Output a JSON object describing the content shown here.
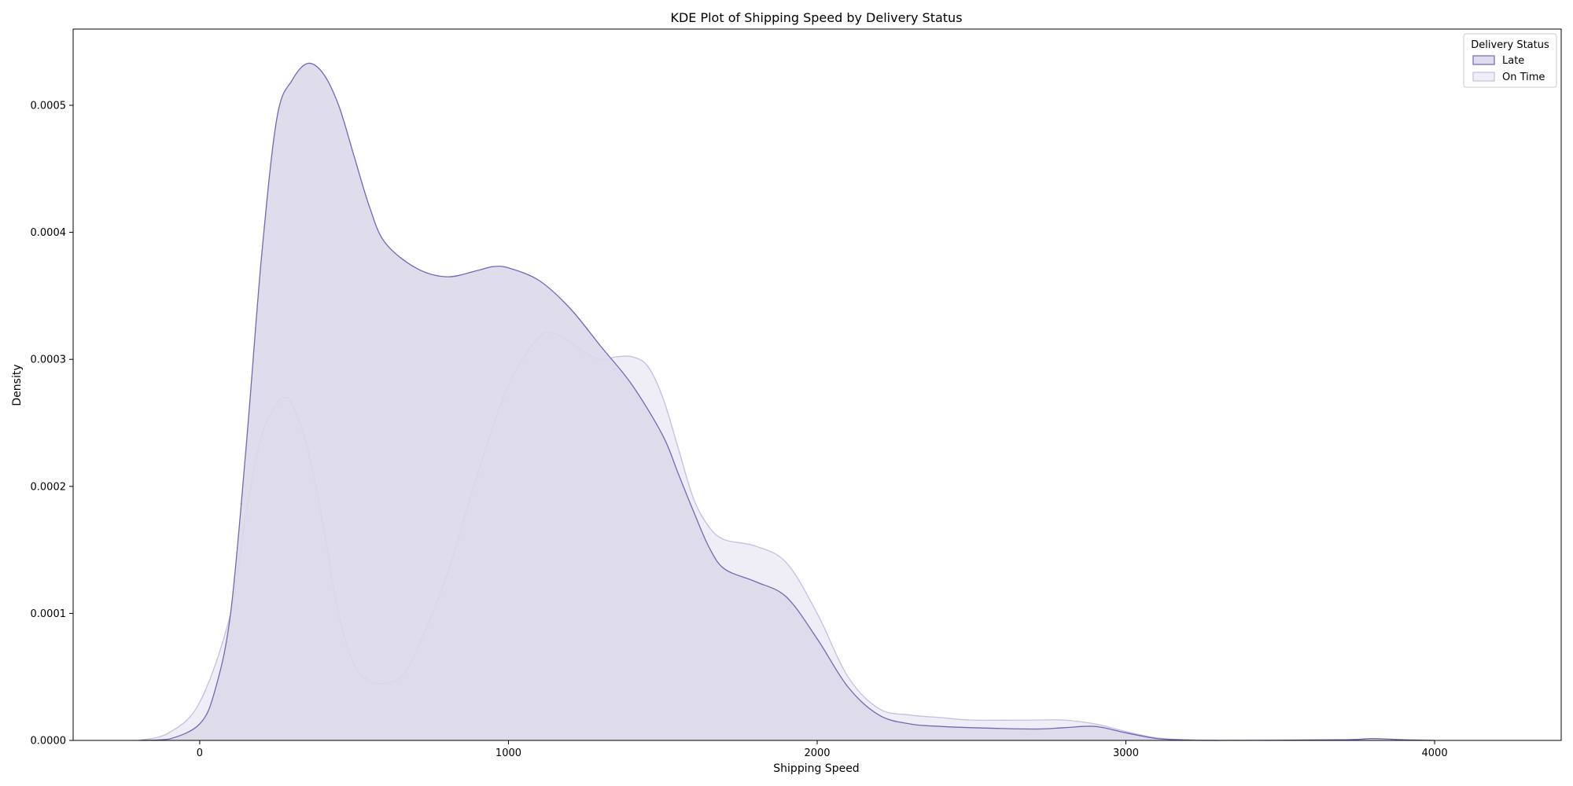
{
  "chart_data": {
    "type": "area",
    "title": "KDE Plot of Shipping Speed by Delivery Status",
    "xlabel": "Shipping Speed",
    "ylabel": "Density",
    "xlim": [
      -410,
      4410
    ],
    "ylim": [
      0,
      0.00056
    ],
    "x_ticks": [
      0,
      1000,
      2000,
      3000,
      4000
    ],
    "x_tick_labels": [
      "0",
      "1000",
      "2000",
      "3000",
      "4000"
    ],
    "y_ticks": [
      0,
      0.0001,
      0.0002,
      0.0003,
      0.0004,
      0.0005
    ],
    "y_tick_labels": [
      "0.0000",
      "0.0001",
      "0.0002",
      "0.0003",
      "0.0004",
      "0.0005"
    ],
    "grid": false,
    "legend": {
      "title": "Delivery Status",
      "position": "top-right"
    },
    "series": [
      {
        "name": "Late",
        "fill": "#dcd8ea",
        "stroke": "#7467b5",
        "fill_opacity": 0.9,
        "points": [
          [
            -190,
            0
          ],
          [
            -100,
            1e-06
          ],
          [
            0,
            1.3e-05
          ],
          [
            50,
            4e-05
          ],
          [
            100,
            0.0001
          ],
          [
            150,
            0.00023
          ],
          [
            200,
            0.00038
          ],
          [
            250,
            0.00049
          ],
          [
            300,
            0.00052
          ],
          [
            350,
            0.000533
          ],
          [
            400,
            0.000525
          ],
          [
            450,
            0.0005
          ],
          [
            500,
            0.00046
          ],
          [
            550,
            0.00042
          ],
          [
            600,
            0.000392
          ],
          [
            700,
            0.000372
          ],
          [
            800,
            0.000365
          ],
          [
            900,
            0.00037
          ],
          [
            950,
            0.000373
          ],
          [
            1000,
            0.000372
          ],
          [
            1100,
            0.000362
          ],
          [
            1200,
            0.00034
          ],
          [
            1300,
            0.00031
          ],
          [
            1400,
            0.00028
          ],
          [
            1500,
            0.00024
          ],
          [
            1550,
            0.00021
          ],
          [
            1600,
            0.00018
          ],
          [
            1650,
            0.000152
          ],
          [
            1700,
            0.000135
          ],
          [
            1800,
            0.000125
          ],
          [
            1900,
            0.000113
          ],
          [
            2000,
            8e-05
          ],
          [
            2100,
            4.2e-05
          ],
          [
            2200,
            2e-05
          ],
          [
            2300,
            1.3e-05
          ],
          [
            2400,
            1.1e-05
          ],
          [
            2500,
            1e-05
          ],
          [
            2700,
            9e-06
          ],
          [
            2800,
            1e-05
          ],
          [
            2900,
            1.1e-05
          ],
          [
            3000,
            6e-06
          ],
          [
            3100,
            1.5e-06
          ],
          [
            3200,
            3e-07
          ],
          [
            3300,
            0
          ],
          [
            3700,
            5e-07
          ],
          [
            3800,
            1.5e-06
          ],
          [
            3900,
            5e-07
          ],
          [
            4000,
            0
          ]
        ]
      },
      {
        "name": "On Time",
        "fill": "#e9e7f3",
        "stroke": "#c4bfdf",
        "fill_opacity": 0.75,
        "points": [
          [
            -200,
            0
          ],
          [
            -100,
            6e-06
          ],
          [
            0,
            3e-05
          ],
          [
            100,
            0.0001
          ],
          [
            150,
            0.00018
          ],
          [
            200,
            0.00024
          ],
          [
            250,
            0.000265
          ],
          [
            275,
            0.00027
          ],
          [
            300,
            0.000265
          ],
          [
            350,
            0.00023
          ],
          [
            400,
            0.00017
          ],
          [
            450,
            0.0001
          ],
          [
            500,
            6e-05
          ],
          [
            550,
            4.7e-05
          ],
          [
            600,
            4.5e-05
          ],
          [
            650,
            5e-05
          ],
          [
            700,
            7e-05
          ],
          [
            800,
            0.00013
          ],
          [
            900,
            0.00021
          ],
          [
            1000,
            0.00028
          ],
          [
            1100,
            0.000318
          ],
          [
            1150,
            0.00032
          ],
          [
            1200,
            0.000314
          ],
          [
            1250,
            0.000305
          ],
          [
            1300,
            0.0003
          ],
          [
            1350,
            0.000302
          ],
          [
            1400,
            0.000302
          ],
          [
            1450,
            0.000295
          ],
          [
            1500,
            0.00027
          ],
          [
            1550,
            0.00023
          ],
          [
            1600,
            0.00019
          ],
          [
            1650,
            0.000168
          ],
          [
            1700,
            0.000158
          ],
          [
            1800,
            0.000153
          ],
          [
            1900,
            0.00014
          ],
          [
            2000,
            0.0001
          ],
          [
            2100,
            5e-05
          ],
          [
            2200,
            2.5e-05
          ],
          [
            2300,
            2e-05
          ],
          [
            2400,
            1.8e-05
          ],
          [
            2500,
            1.6e-05
          ],
          [
            2700,
            1.6e-05
          ],
          [
            2800,
            1.6e-05
          ],
          [
            2900,
            1.3e-05
          ],
          [
            3000,
            7e-06
          ],
          [
            3100,
            2e-06
          ],
          [
            3200,
            5e-07
          ],
          [
            3300,
            0
          ]
        ]
      }
    ]
  }
}
